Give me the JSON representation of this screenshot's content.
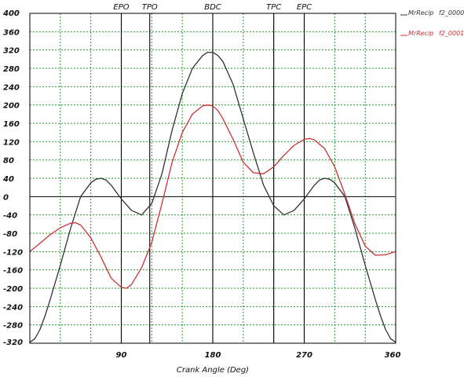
{
  "chart_data": {
    "type": "line",
    "xlabel": "Crank Angle (Deg)",
    "ylabel": "",
    "xlim": [
      0,
      360
    ],
    "ylim": [
      -320,
      400
    ],
    "xticks": [
      90,
      180,
      270,
      360
    ],
    "yticks": [
      400,
      360,
      320,
      280,
      240,
      200,
      160,
      120,
      80,
      40,
      0,
      -40,
      -80,
      -120,
      -160,
      -200,
      -240,
      -280,
      -320
    ],
    "grid": true,
    "legend_position": "top-right",
    "markers": [
      {
        "label": "EPO",
        "x": 90
      },
      {
        "label": "TPO",
        "x": 118
      },
      {
        "label": "BDC",
        "x": 180
      },
      {
        "label": "TPC",
        "x": 240
      },
      {
        "label": "EPC",
        "x": 270
      }
    ],
    "series": [
      {
        "name": "MrRecip",
        "legend_tag": "f2_0000",
        "color": "#333333",
        "x": [
          0,
          5,
          10,
          15,
          20,
          30,
          40,
          50,
          60,
          65,
          70,
          75,
          80,
          90,
          100,
          110,
          120,
          130,
          140,
          150,
          160,
          170,
          175,
          180,
          185,
          190,
          200,
          210,
          220,
          230,
          240,
          250,
          260,
          270,
          280,
          285,
          290,
          295,
          300,
          310,
          320,
          330,
          340,
          345,
          350,
          355,
          360
        ],
        "y": [
          -318,
          -310,
          -290,
          -260,
          -225,
          -150,
          -70,
          0,
          30,
          38,
          40,
          36,
          25,
          -5,
          -30,
          -40,
          -15,
          50,
          145,
          225,
          280,
          308,
          315,
          315,
          308,
          295,
          245,
          170,
          95,
          25,
          -20,
          -40,
          -30,
          -5,
          25,
          36,
          40,
          38,
          30,
          0,
          -70,
          -150,
          -225,
          -260,
          -290,
          -310,
          -318
        ]
      },
      {
        "name": "MrRecip",
        "legend_tag": "f2_0001",
        "color": "#cc3333",
        "x": [
          0,
          10,
          20,
          30,
          40,
          45,
          50,
          60,
          70,
          80,
          90,
          95,
          100,
          110,
          120,
          130,
          140,
          150,
          160,
          170,
          175,
          180,
          185,
          190,
          200,
          210,
          220,
          230,
          240,
          250,
          260,
          270,
          275,
          280,
          290,
          300,
          310,
          320,
          330,
          340,
          350,
          360
        ],
        "y": [
          -120,
          -102,
          -83,
          -68,
          -58,
          -57,
          -62,
          -90,
          -132,
          -178,
          -198,
          -200,
          -192,
          -155,
          -100,
          -15,
          75,
          140,
          180,
          198,
          200,
          198,
          188,
          170,
          125,
          75,
          52,
          50,
          65,
          90,
          112,
          125,
          127,
          124,
          105,
          65,
          5,
          -60,
          -108,
          -128,
          -127,
          -120
        ]
      }
    ]
  }
}
